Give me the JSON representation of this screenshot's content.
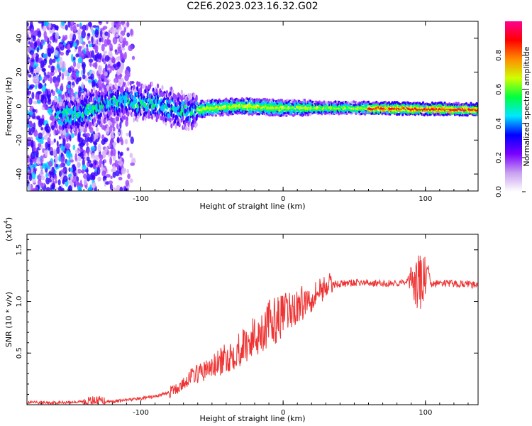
{
  "title": "C2E6.2023.023.16.32.G02",
  "chart_data": [
    {
      "type": "heatmap",
      "xlabel": "Height of straight line (km)",
      "ylabel": "Frequency (Hz)",
      "xlim": [
        -180,
        137
      ],
      "ylim": [
        -50,
        50
      ],
      "xticks": [
        -100,
        0,
        100
      ],
      "yticks": [
        -40,
        -20,
        0,
        20,
        40
      ],
      "colorbar": {
        "label": "Normalized spectral amplitude",
        "range": [
          0,
          1
        ],
        "ticks": [
          "0.0",
          "0.2",
          "0.4",
          "0.6",
          "0.8"
        ],
        "colors": [
          "#ffffff",
          "#c8a0f0",
          "#7a00ff",
          "#0000ff",
          "#00e8ff",
          "#00ff40",
          "#d0ff00",
          "#ff8c00",
          "#ff0000",
          "#ff0090"
        ]
      },
      "ridge": {
        "description_points": [
          [
            -155,
            -5
          ],
          [
            -140,
            -3
          ],
          [
            -125,
            2
          ],
          [
            -110,
            3
          ],
          [
            -90,
            2
          ],
          [
            -70,
            -3
          ],
          [
            -50,
            -1
          ],
          [
            -30,
            0
          ],
          [
            0,
            -1
          ],
          [
            50,
            -1
          ],
          [
            137,
            -2
          ]
        ]
      }
    },
    {
      "type": "line",
      "xlabel": "Height of straight line (km)",
      "ylabel": "SNR (10 * v/v)",
      "yscale_label": "(x10",
      "yscale_exp": "4",
      "xlim": [
        -180,
        137
      ],
      "ylim": [
        0,
        1.65
      ],
      "xticks": [
        -100,
        0,
        100
      ],
      "yticks": [
        "0.5",
        "1.0",
        "1.5"
      ],
      "color": "#ee3333",
      "series": [
        {
          "x": [
            -180,
            -160,
            -140,
            -130,
            -120,
            -100,
            -90,
            -80,
            -75,
            -70,
            -65,
            -60,
            -55,
            -50,
            -45,
            -40,
            -35,
            -30,
            -25,
            -20,
            -15,
            -10,
            -5,
            0,
            5,
            10,
            15,
            20,
            25,
            30,
            35,
            40,
            50,
            60,
            70,
            80,
            85,
            90,
            95,
            100,
            105,
            110,
            120,
            130,
            137
          ],
          "values": [
            0.02,
            0.02,
            0.03,
            0.04,
            0.03,
            0.06,
            0.08,
            0.12,
            0.15,
            0.2,
            0.28,
            0.3,
            0.33,
            0.36,
            0.4,
            0.45,
            0.5,
            0.55,
            0.6,
            0.66,
            0.72,
            0.78,
            0.82,
            0.87,
            0.9,
            0.95,
            1.0,
            1.05,
            1.1,
            1.15,
            1.17,
            1.17,
            1.18,
            1.18,
            1.17,
            1.18,
            1.18,
            1.2,
            1.15,
            1.25,
            1.16,
            1.18,
            1.17,
            1.17,
            1.15
          ]
        }
      ]
    }
  ]
}
